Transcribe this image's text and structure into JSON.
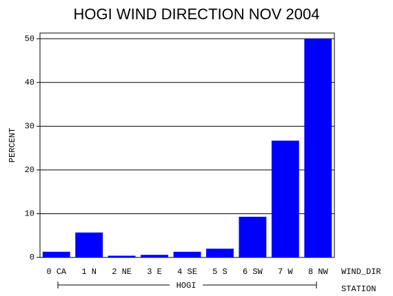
{
  "chart_data": {
    "type": "bar",
    "title": "HOGI WIND DIRECTION NOV 2004",
    "ylabel": "PERCENT",
    "xlabel": "WIND_DIR",
    "group_axis_label": "STATION",
    "group": "HOGI",
    "categories": [
      "0 CA",
      "1 N",
      "2 NE",
      "3 E",
      "4 SE",
      "5 S",
      "6 SW",
      "7 W",
      "8 NW"
    ],
    "values": [
      1.3,
      5.7,
      0.4,
      0.6,
      1.3,
      2.0,
      9.3,
      26.7,
      50.0
    ],
    "color": "#0000ff",
    "ylim": [
      0,
      51.3
    ],
    "yticks": [
      0,
      10,
      20,
      30,
      40,
      50
    ],
    "grid": true
  }
}
